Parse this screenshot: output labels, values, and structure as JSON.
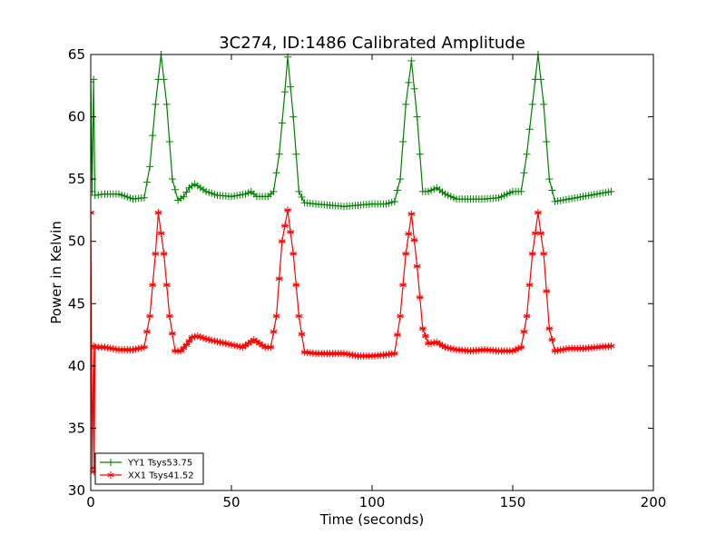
{
  "chart_data": {
    "type": "line",
    "title": "3C274, ID:1486 Calibrated Amplitude",
    "xlabel": "Time (seconds)",
    "ylabel": "Power in Kelvin",
    "xlim": [
      0,
      200
    ],
    "ylim": [
      30,
      65
    ],
    "xticks": [
      0,
      50,
      100,
      150,
      200
    ],
    "yticks": [
      30,
      35,
      40,
      45,
      50,
      55,
      60,
      65
    ],
    "grid": false,
    "legend_placement": "lower-left",
    "series": [
      {
        "name": "YY1 Tsys53.75",
        "color": "#008000",
        "marker": "+",
        "points": [
          [
            0,
            62.8
          ],
          [
            0.5,
            54
          ],
          [
            1,
            63
          ],
          [
            1.5,
            53.7
          ],
          [
            5,
            53.8
          ],
          [
            10,
            53.8
          ],
          [
            15,
            53.4
          ],
          [
            19,
            53.5
          ],
          [
            21,
            56
          ],
          [
            23,
            61
          ],
          [
            25,
            65
          ],
          [
            27,
            61
          ],
          [
            29,
            55
          ],
          [
            31,
            53.3
          ],
          [
            33,
            53.6
          ],
          [
            35,
            54.3
          ],
          [
            37,
            54.6
          ],
          [
            39,
            54.3
          ],
          [
            41,
            54
          ],
          [
            45,
            53.7
          ],
          [
            50,
            53.6
          ],
          [
            55,
            53.8
          ],
          [
            57,
            54
          ],
          [
            59,
            53.6
          ],
          [
            63,
            53.6
          ],
          [
            65,
            54
          ],
          [
            67,
            57
          ],
          [
            69,
            62
          ],
          [
            70,
            64.8
          ],
          [
            72,
            60
          ],
          [
            74,
            54
          ],
          [
            76,
            53.1
          ],
          [
            80,
            53
          ],
          [
            85,
            52.9
          ],
          [
            90,
            52.8
          ],
          [
            95,
            52.9
          ],
          [
            100,
            53
          ],
          [
            105,
            53
          ],
          [
            108,
            53.2
          ],
          [
            110,
            55
          ],
          [
            112,
            61
          ],
          [
            114,
            64.5
          ],
          [
            116,
            60
          ],
          [
            118,
            54
          ],
          [
            120,
            54
          ],
          [
            123,
            54.3
          ],
          [
            126,
            53.8
          ],
          [
            130,
            53.4
          ],
          [
            135,
            53.4
          ],
          [
            140,
            53.4
          ],
          [
            145,
            53.5
          ],
          [
            150,
            54
          ],
          [
            153,
            54
          ],
          [
            155,
            57
          ],
          [
            157,
            61
          ],
          [
            159,
            65
          ],
          [
            161,
            61
          ],
          [
            163,
            55
          ],
          [
            165,
            53.2
          ],
          [
            170,
            53.4
          ],
          [
            175,
            53.6
          ],
          [
            180,
            53.8
          ],
          [
            185,
            54
          ]
        ]
      },
      {
        "name": "XX1 Tsys41.52",
        "color": "#ff0000",
        "marker": "*",
        "points": [
          [
            0,
            52.3
          ],
          [
            0.5,
            31.8
          ],
          [
            1,
            41.6
          ],
          [
            1.2,
            31.5
          ],
          [
            1.5,
            41.5
          ],
          [
            5,
            41.5
          ],
          [
            10,
            41.3
          ],
          [
            15,
            41.3
          ],
          [
            19,
            41.5
          ],
          [
            21,
            44
          ],
          [
            23,
            49
          ],
          [
            24,
            52.3
          ],
          [
            26,
            49
          ],
          [
            28,
            44
          ],
          [
            30,
            41.2
          ],
          [
            32,
            41.2
          ],
          [
            34,
            41.7
          ],
          [
            36,
            42.3
          ],
          [
            38,
            42.4
          ],
          [
            42,
            42.1
          ],
          [
            46,
            41.9
          ],
          [
            50,
            41.7
          ],
          [
            54,
            41.5
          ],
          [
            58,
            42.1
          ],
          [
            62,
            41.5
          ],
          [
            64,
            41.5
          ],
          [
            66,
            44
          ],
          [
            68,
            50
          ],
          [
            70,
            52.5
          ],
          [
            72,
            49
          ],
          [
            74,
            44
          ],
          [
            76,
            41.1
          ],
          [
            80,
            41
          ],
          [
            85,
            41
          ],
          [
            90,
            41
          ],
          [
            95,
            40.8
          ],
          [
            100,
            40.8
          ],
          [
            105,
            40.9
          ],
          [
            108,
            41
          ],
          [
            110,
            44
          ],
          [
            112,
            49
          ],
          [
            114,
            52.2
          ],
          [
            116,
            48
          ],
          [
            118,
            43
          ],
          [
            120,
            41.8
          ],
          [
            123,
            41.9
          ],
          [
            126,
            41.5
          ],
          [
            130,
            41.3
          ],
          [
            135,
            41.2
          ],
          [
            140,
            41.3
          ],
          [
            145,
            41.2
          ],
          [
            150,
            41.2
          ],
          [
            153,
            41.5
          ],
          [
            155,
            44
          ],
          [
            157,
            49
          ],
          [
            159,
            52.3
          ],
          [
            161,
            49
          ],
          [
            163,
            43
          ],
          [
            165,
            41.2
          ],
          [
            170,
            41.4
          ],
          [
            175,
            41.4
          ],
          [
            180,
            41.5
          ],
          [
            185,
            41.6
          ]
        ]
      }
    ]
  }
}
